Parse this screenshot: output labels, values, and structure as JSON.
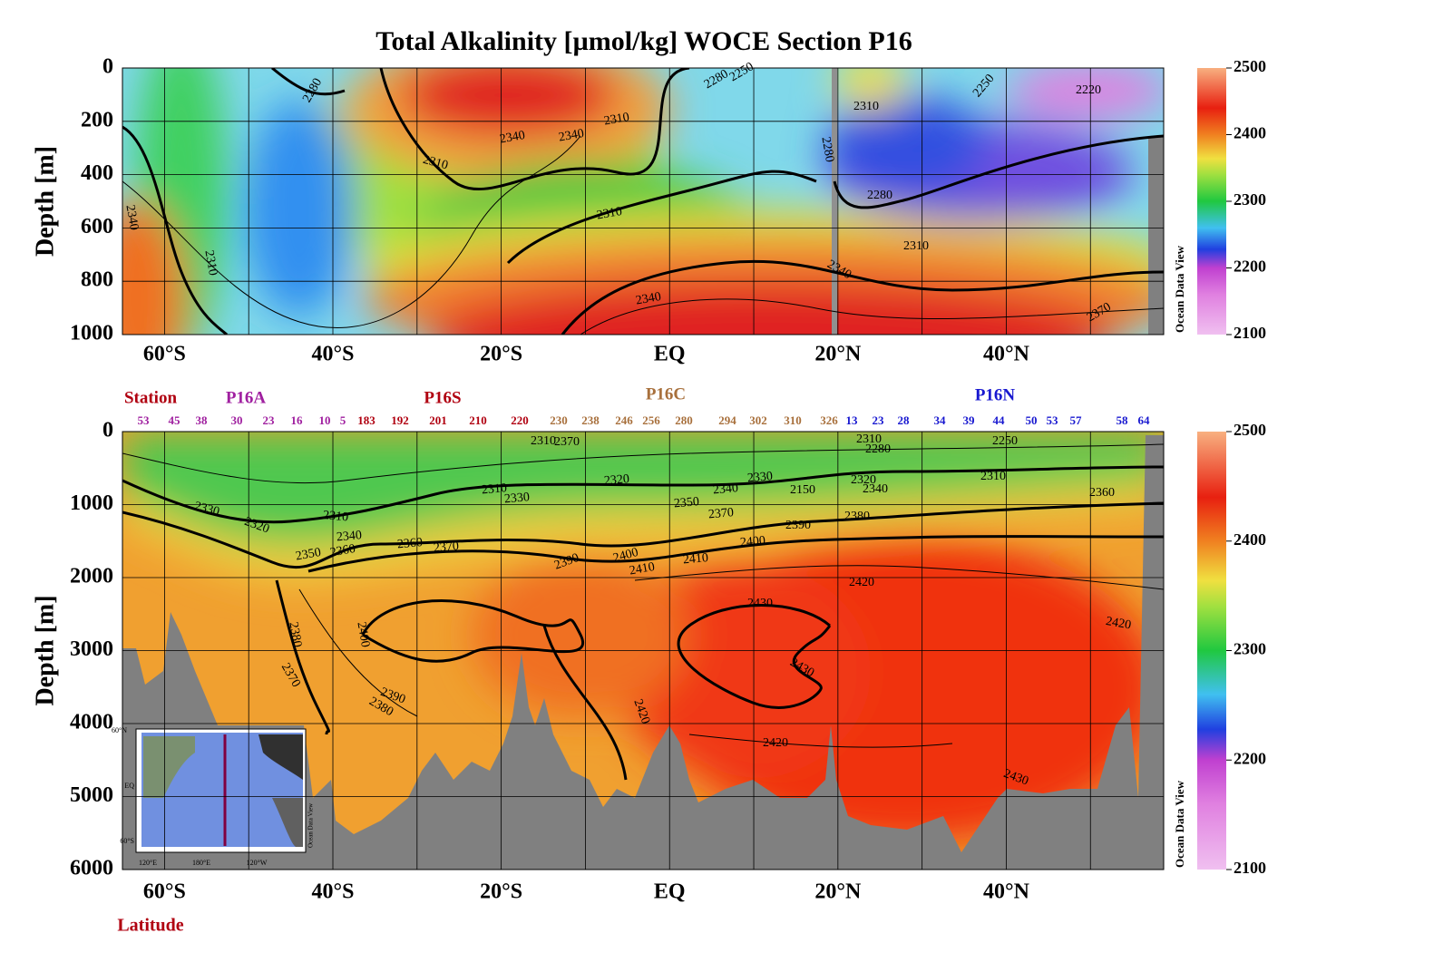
{
  "chart_data": [
    {
      "type": "contour",
      "title": "Total Alkalinity [µmol/kg]  WOCE Section P16",
      "ylabel": "Depth [m]",
      "xlim": [
        -65,
        58.7
      ],
      "ylim": [
        1000,
        0
      ],
      "xticks": [
        {
          "value": -60,
          "label": "60°S"
        },
        {
          "value": -40,
          "label": "40°S"
        },
        {
          "value": -20,
          "label": "20°S"
        },
        {
          "value": 0,
          "label": "EQ"
        },
        {
          "value": 20,
          "label": "20°N"
        },
        {
          "value": 40,
          "label": "40°N"
        }
      ],
      "xgrid": [
        -50,
        -30,
        -10,
        10,
        30,
        50
      ],
      "yticks": [
        0,
        200,
        400,
        600,
        800,
        1000
      ],
      "grid": true,
      "colorbar": {
        "lim": [
          2100,
          2500
        ],
        "ticks": [
          2100,
          2200,
          2300,
          2400,
          2500
        ],
        "label": "Ocean Data View"
      },
      "contour_labels": [
        2280,
        2310,
        2340,
        2340,
        2340,
        2310,
        2310,
        2280,
        2250,
        2310,
        2280,
        2280,
        2250,
        2220,
        2310,
        2310,
        2340,
        2340,
        2370
      ]
    },
    {
      "type": "contour",
      "ylabel": "Depth [m]",
      "xlabel": "Latitude",
      "xlim": [
        -65,
        58.7
      ],
      "ylim": [
        6000,
        0
      ],
      "xticks": [
        {
          "value": -60,
          "label": "60°S"
        },
        {
          "value": -40,
          "label": "40°S"
        },
        {
          "value": -20,
          "label": "20°S"
        },
        {
          "value": 0,
          "label": "EQ"
        },
        {
          "value": 20,
          "label": "20°N"
        },
        {
          "value": 40,
          "label": "40°N"
        }
      ],
      "xgrid": [
        -50,
        -30,
        -10,
        10,
        30,
        50
      ],
      "yticks": [
        0,
        1000,
        2000,
        3000,
        4000,
        5000,
        6000
      ],
      "grid": true,
      "colorbar": {
        "lim": [
          2100,
          2500
        ],
        "ticks": [
          2100,
          2200,
          2300,
          2400,
          2500
        ],
        "label": "Ocean Data View"
      },
      "station_label": "Station",
      "sections": [
        {
          "name": "P16A",
          "color": "#a020a0"
        },
        {
          "name": "P16S",
          "color": "#b00010"
        },
        {
          "name": "P16C",
          "color": "#a8703c"
        },
        {
          "name": "P16N",
          "color": "#1818d0"
        }
      ],
      "stations": [
        53,
        45,
        38,
        30,
        23,
        16,
        10,
        5,
        183,
        192,
        201,
        210,
        220,
        230,
        238,
        246,
        256,
        280,
        294,
        302,
        310,
        326,
        13,
        23,
        28,
        34,
        39,
        44,
        50,
        53,
        57,
        58,
        64
      ],
      "contour_labels": [
        2330,
        2320,
        2310,
        2340,
        2350,
        2360,
        2360,
        2370,
        2390,
        2400,
        2410,
        2410,
        2400,
        2390,
        2380,
        2370,
        2350,
        2340,
        2330,
        2320,
        2330,
        2310,
        2310,
        2340,
        2320,
        2280,
        2250,
        2310,
        2360,
        2420,
        2430,
        2430,
        2420,
        2420,
        2430,
        2390,
        2380,
        2380,
        2370,
        2400,
        2420,
        2310,
        2370,
        2150
      ],
      "inset": [
        "60°N",
        "EQ",
        "60°S",
        "120°E",
        "180°E",
        "120°W",
        "Ocean Data View"
      ]
    }
  ]
}
